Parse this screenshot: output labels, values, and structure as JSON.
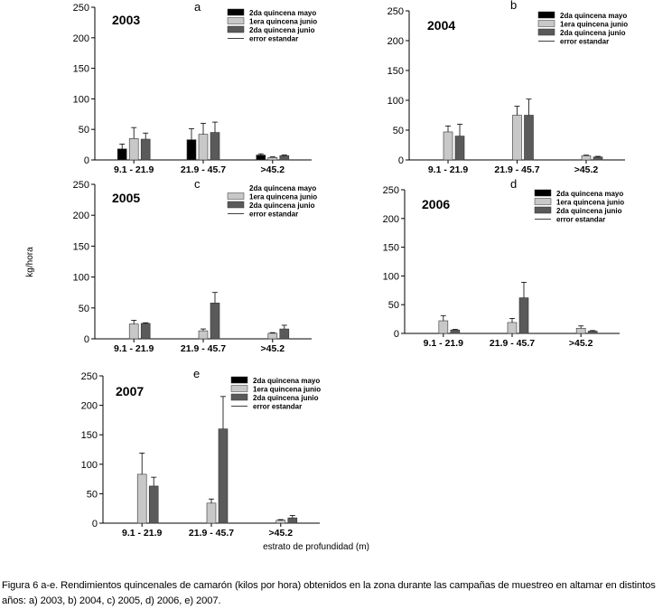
{
  "figure": {
    "ylabel": "kg/hora",
    "xlabel": "estrato de profundidad (m)",
    "caption": "Figura 6 a-e. Rendimientos quincenales de camarón (kilos por hora) obtenidos en la zona durante las campañas de muestreo en altamar en distintos años: a) 2003, b) 2004, c) 2005, d) 2006, e) 2007."
  },
  "colors": {
    "series": [
      "#000000",
      "#c8c8c8",
      "#5a5a5a"
    ],
    "error": "#000000"
  },
  "chart_data": [
    {
      "type": "bar",
      "letter": "a",
      "title": "2003",
      "categories": [
        "9.1 - 21.9",
        "21.9 - 45.7",
        ">45.2"
      ],
      "ylim": [
        0,
        250
      ],
      "yticks": [
        0,
        50,
        100,
        150,
        200,
        250
      ],
      "legend": [
        "2da quincena mayo",
        "1era quincena junio",
        "2da quincena junio",
        "error estandar"
      ],
      "legend_has_black_swatch": true,
      "series": [
        {
          "name": "2da quincena mayo",
          "values": [
            18,
            33,
            8
          ],
          "errors": [
            8,
            18,
            2
          ]
        },
        {
          "name": "1era quincena junio",
          "values": [
            35,
            42,
            4
          ],
          "errors": [
            18,
            18,
            1
          ]
        },
        {
          "name": "2da quincena junio",
          "values": [
            34,
            45,
            7
          ],
          "errors": [
            10,
            17,
            1
          ]
        }
      ]
    },
    {
      "type": "bar",
      "letter": "b",
      "title": "2004",
      "categories": [
        "9.1 - 21.9",
        "21.9 - 45.7",
        ">45.2"
      ],
      "ylim": [
        0,
        250
      ],
      "yticks": [
        0,
        50,
        100,
        150,
        200,
        250
      ],
      "legend": [
        "2da quincena mayo",
        "1era quincena junio",
        "2da quincena junio",
        "error estandar"
      ],
      "legend_has_black_swatch": true,
      "series": [
        {
          "name": "2da quincena mayo",
          "values": [
            0,
            0,
            0
          ],
          "errors": [
            0,
            0,
            0
          ]
        },
        {
          "name": "1era quincena junio",
          "values": [
            47,
            75,
            7
          ],
          "errors": [
            10,
            15,
            1
          ]
        },
        {
          "name": "2da quincena junio",
          "values": [
            40,
            75,
            5
          ],
          "errors": [
            20,
            27,
            1
          ]
        }
      ]
    },
    {
      "type": "bar",
      "letter": "c",
      "title": "2005",
      "categories": [
        "9.1 - 21.9",
        "21.9 - 45.7",
        ">45.2"
      ],
      "ylim": [
        0,
        250
      ],
      "yticks": [
        0,
        50,
        100,
        150,
        200,
        250
      ],
      "legend": [
        "2da quincena mayo",
        "1era quincena junio",
        "2da quincena junio",
        "error estandar"
      ],
      "legend_has_black_swatch": false,
      "series": [
        {
          "name": "2da quincena mayo",
          "values": [
            0,
            0,
            0
          ],
          "errors": [
            0,
            0,
            0
          ]
        },
        {
          "name": "1era quincena junio",
          "values": [
            24,
            13,
            9
          ],
          "errors": [
            6,
            3,
            1
          ]
        },
        {
          "name": "2da quincena junio",
          "values": [
            25,
            58,
            16
          ],
          "errors": [
            1,
            17,
            6
          ]
        }
      ]
    },
    {
      "type": "bar",
      "letter": "d",
      "title": "2006",
      "categories": [
        "9.1 - 21.9",
        "21.9 - 45.7",
        ">45.2"
      ],
      "ylim": [
        0,
        250
      ],
      "yticks": [
        0,
        50,
        100,
        150,
        200,
        250
      ],
      "legend": [
        "2da quincena mayo",
        "1era quincena junio",
        "2da quincena junio",
        "error estandar"
      ],
      "legend_has_black_swatch": true,
      "series": [
        {
          "name": "2da quincena mayo",
          "values": [
            0,
            0,
            0
          ],
          "errors": [
            0,
            0,
            0
          ]
        },
        {
          "name": "1era quincena junio",
          "values": [
            22,
            19,
            9
          ],
          "errors": [
            9,
            7,
            4
          ]
        },
        {
          "name": "2da quincena junio",
          "values": [
            6,
            62,
            4
          ],
          "errors": [
            1,
            27,
            1
          ]
        }
      ]
    },
    {
      "type": "bar",
      "letter": "e",
      "title": "2007",
      "categories": [
        "9.1 - 21.9",
        "21.9 - 45.7",
        ">45.2"
      ],
      "ylim": [
        0,
        250
      ],
      "yticks": [
        0,
        50,
        100,
        150,
        200,
        250
      ],
      "legend": [
        "2da quincena mayo",
        "1era quincena junio",
        "2da quincena junio",
        "error estandar"
      ],
      "legend_has_black_swatch": true,
      "series": [
        {
          "name": "2da quincena mayo",
          "values": [
            0,
            0,
            0
          ],
          "errors": [
            0,
            0,
            0
          ]
        },
        {
          "name": "1era quincena junio",
          "values": [
            83,
            34,
            5
          ],
          "errors": [
            36,
            7,
            1
          ]
        },
        {
          "name": "2da quincena junio",
          "values": [
            63,
            160,
            9
          ],
          "errors": [
            15,
            55,
            4
          ]
        }
      ]
    }
  ]
}
